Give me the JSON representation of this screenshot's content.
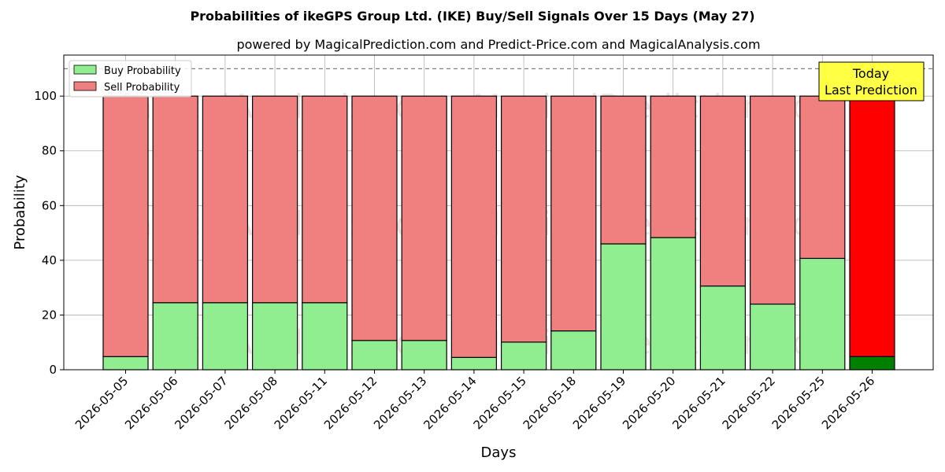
{
  "chart_data": {
    "type": "bar",
    "stacked": true,
    "title": "Probabilities of ikeGPS Group Ltd. (IKE) Buy/Sell Signals Over 15 Days (May 27)",
    "subtitle": "powered by MagicalPrediction.com and Predict-Price.com and MagicalAnalysis.com",
    "xlabel": "Days",
    "ylabel": "Probability",
    "ylim": [
      0,
      115
    ],
    "yticks": [
      0,
      20,
      40,
      60,
      80,
      100
    ],
    "grid": true,
    "legend_position": "top-left",
    "reference_line": 110,
    "categories": [
      "2026-05-05",
      "2026-05-06",
      "2026-05-07",
      "2026-05-08",
      "2026-05-11",
      "2026-05-12",
      "2026-05-13",
      "2026-05-14",
      "2026-05-15",
      "2026-05-18",
      "2026-05-19",
      "2026-05-20",
      "2026-05-21",
      "2026-05-22",
      "2026-05-25",
      "2026-05-26"
    ],
    "series": [
      {
        "name": "Buy Probability",
        "color": "#90ee90",
        "values": [
          4.8,
          24.5,
          24.5,
          24.5,
          24.5,
          10.7,
          10.7,
          4.5,
          10.1,
          14.2,
          46.0,
          48.3,
          30.6,
          24.0,
          40.7,
          4.8
        ]
      },
      {
        "name": "Sell Probability",
        "color": "#f08080",
        "values": [
          95.2,
          75.5,
          75.5,
          75.5,
          75.5,
          89.3,
          89.3,
          95.5,
          89.9,
          85.8,
          54.0,
          51.7,
          69.4,
          76.0,
          59.3,
          95.2
        ]
      }
    ],
    "highlight": {
      "index": 15,
      "buy_color": "#008000",
      "sell_color": "#ff0000"
    },
    "annotation": {
      "lines": [
        "Today",
        "Last Prediction"
      ],
      "background": "#ffff44"
    },
    "watermarks": [
      "MagicalAnalysis.com",
      "MagicalPrediction.com",
      "MagicalAnalysis.com",
      "MagicalPrediction.com",
      "MagicalAnalysis.com",
      "MagicalPrediction.com"
    ]
  }
}
